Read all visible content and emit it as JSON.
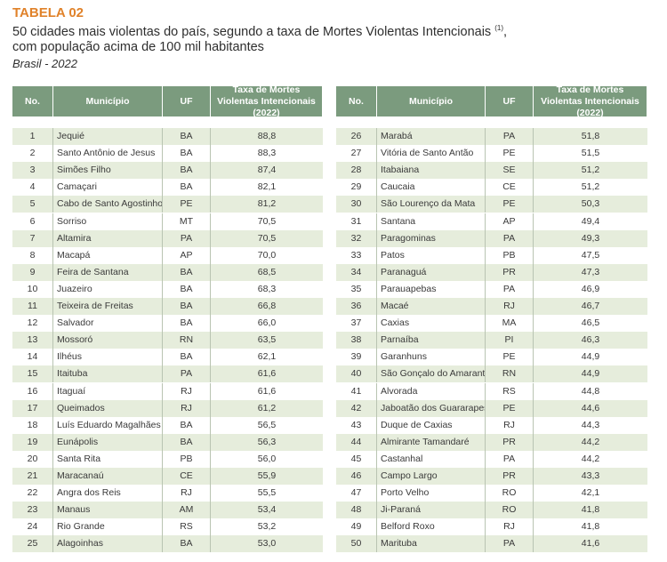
{
  "header": {
    "title": "TABELA 02",
    "subtitle": {
      "line1": "50 cidades mais violentas do país, segundo a taxa de Mortes Violentas Intencionais",
      "note": "(1)",
      "line1_end": ",",
      "line2": "com população acima de 100 mil habitantes"
    },
    "source": "Brasil - 2022"
  },
  "tables": [
    {
      "columns": [
        "No.",
        "Município",
        "UF",
        "Taxa de Mortes Violentas Intencionais (2022)"
      ],
      "rows": [
        [
          1,
          "Jequié",
          "BA",
          "88,8"
        ],
        [
          2,
          "Santo Antônio de Jesus",
          "BA",
          "88,3"
        ],
        [
          3,
          "Simões Filho",
          "BA",
          "87,4"
        ],
        [
          4,
          "Camaçari",
          "BA",
          "82,1"
        ],
        [
          5,
          "Cabo de Santo Agostinho",
          "PE",
          "81,2"
        ],
        [
          6,
          "Sorriso",
          "MT",
          "70,5"
        ],
        [
          7,
          "Altamira",
          "PA",
          "70,5"
        ],
        [
          8,
          "Macapá",
          "AP",
          "70,0"
        ],
        [
          9,
          "Feira de Santana",
          "BA",
          "68,5"
        ],
        [
          10,
          "Juazeiro",
          "BA",
          "68,3"
        ],
        [
          11,
          "Teixeira de Freitas",
          "BA",
          "66,8"
        ],
        [
          12,
          "Salvador",
          "BA",
          "66,0"
        ],
        [
          13,
          "Mossoró",
          "RN",
          "63,5"
        ],
        [
          14,
          "Ilhéus",
          "BA",
          "62,1"
        ],
        [
          15,
          "Itaituba",
          "PA",
          "61,6"
        ],
        [
          16,
          "Itaguaí",
          "RJ",
          "61,6"
        ],
        [
          17,
          "Queimados",
          "RJ",
          "61,2"
        ],
        [
          18,
          "Luís Eduardo Magalhães",
          "BA",
          "56,5"
        ],
        [
          19,
          "Eunápolis",
          "BA",
          "56,3"
        ],
        [
          20,
          "Santa Rita",
          "PB",
          "56,0"
        ],
        [
          21,
          "Maracanaú",
          "CE",
          "55,9"
        ],
        [
          22,
          "Angra dos Reis",
          "RJ",
          "55,5"
        ],
        [
          23,
          "Manaus",
          "AM",
          "53,4"
        ],
        [
          24,
          "Rio Grande",
          "RS",
          "53,2"
        ],
        [
          25,
          "Alagoinhas",
          "BA",
          "53,0"
        ]
      ]
    },
    {
      "columns": [
        "No.",
        "Município",
        "UF",
        "Taxa de Mortes Violentas Intencionais (2022)"
      ],
      "rows": [
        [
          26,
          "Marabá",
          "PA",
          "51,8"
        ],
        [
          27,
          "Vitória de Santo Antão",
          "PE",
          "51,5"
        ],
        [
          28,
          "Itabaiana",
          "SE",
          "51,2"
        ],
        [
          29,
          "Caucaia",
          "CE",
          "51,2"
        ],
        [
          30,
          "São Lourenço da Mata",
          "PE",
          "50,3"
        ],
        [
          31,
          "Santana",
          "AP",
          "49,4"
        ],
        [
          32,
          "Paragominas",
          "PA",
          "49,3"
        ],
        [
          33,
          "Patos",
          "PB",
          "47,5"
        ],
        [
          34,
          "Paranaguá",
          "PR",
          "47,3"
        ],
        [
          35,
          "Parauapebas",
          "PA",
          "46,9"
        ],
        [
          36,
          "Macaé",
          "RJ",
          "46,7"
        ],
        [
          37,
          "Caxias",
          "MA",
          "46,5"
        ],
        [
          38,
          "Parnaíba",
          "PI",
          "46,3"
        ],
        [
          39,
          "Garanhuns",
          "PE",
          "44,9"
        ],
        [
          40,
          "São Gonçalo do Amarante",
          "RN",
          "44,9"
        ],
        [
          41,
          "Alvorada",
          "RS",
          "44,8"
        ],
        [
          42,
          "Jaboatão dos Guararapes",
          "PE",
          "44,6"
        ],
        [
          43,
          "Duque de Caxias",
          "RJ",
          "44,3"
        ],
        [
          44,
          "Almirante Tamandaré",
          "PR",
          "44,2"
        ],
        [
          45,
          "Castanhal",
          "PA",
          "44,2"
        ],
        [
          46,
          "Campo Largo",
          "PR",
          "43,3"
        ],
        [
          47,
          "Porto Velho",
          "RO",
          "42,1"
        ],
        [
          48,
          "Ji-Paraná",
          "RO",
          "41,8"
        ],
        [
          49,
          "Belford Roxo",
          "RJ",
          "41,8"
        ],
        [
          50,
          "Marituba",
          "PA",
          "41,6"
        ]
      ]
    }
  ]
}
